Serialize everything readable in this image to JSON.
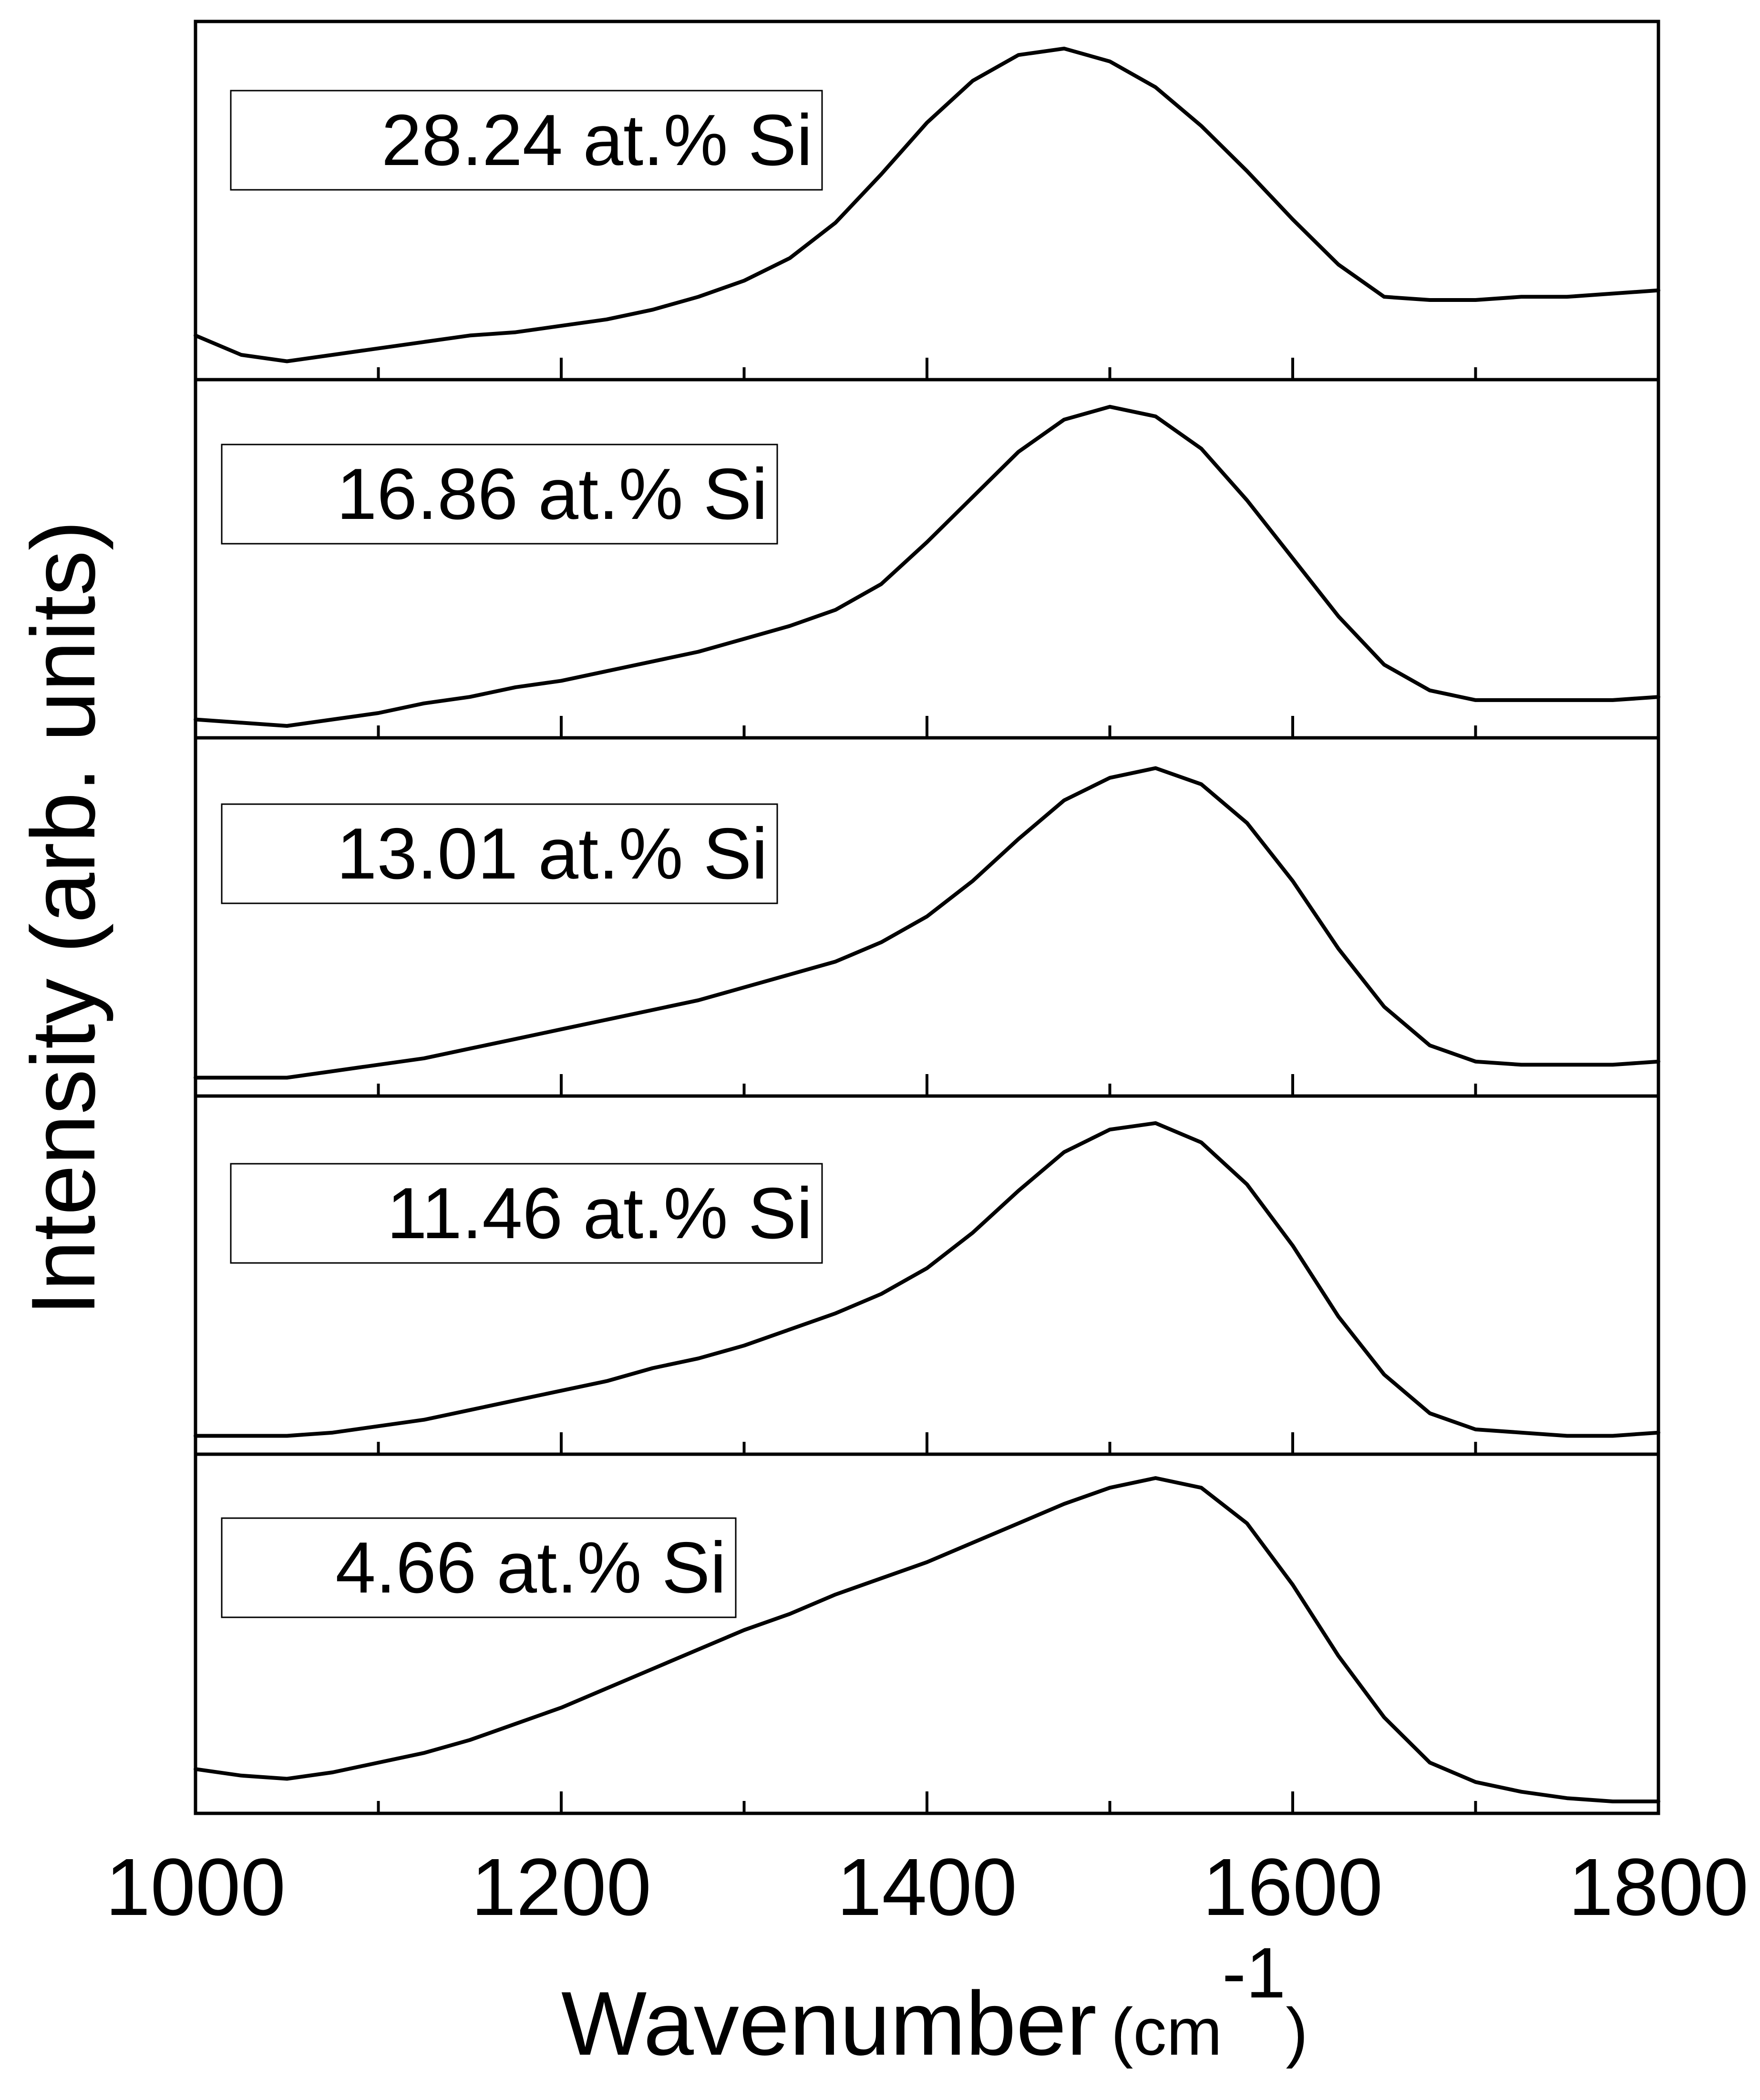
{
  "chart_data": {
    "type": "line",
    "layout": "stacked panels",
    "xlabel": "Wavenumber",
    "xlabel_unit_prefix": "(cm",
    "xlabel_unit_exponent": "-1",
    "xlabel_unit_suffix": ")",
    "ylabel": "Intensity (arb. units)",
    "xlim": [
      1000,
      1800
    ],
    "xticks_major": [
      1000,
      1200,
      1400,
      1600,
      1800
    ],
    "xtick_labels": [
      "1000",
      "1200",
      "1400",
      "1600",
      "1800"
    ],
    "xticks_minor": [
      1100,
      1300,
      1500,
      1700
    ],
    "panel_ylim": [
      0,
      1
    ],
    "series_x": [
      1000,
      1025,
      1050,
      1075,
      1100,
      1125,
      1150,
      1175,
      1200,
      1225,
      1250,
      1275,
      1300,
      1325,
      1350,
      1375,
      1400,
      1425,
      1450,
      1475,
      1500,
      1525,
      1550,
      1575,
      1600,
      1625,
      1650,
      1675,
      1700,
      1725,
      1750,
      1775,
      1800
    ],
    "series": [
      {
        "name": "28.24 at.% Si",
        "values": [
          0.1,
          0.04,
          0.02,
          0.04,
          0.06,
          0.08,
          0.1,
          0.11,
          0.13,
          0.15,
          0.18,
          0.22,
          0.27,
          0.34,
          0.45,
          0.6,
          0.76,
          0.89,
          0.97,
          0.99,
          0.95,
          0.87,
          0.75,
          0.61,
          0.46,
          0.32,
          0.22,
          0.21,
          0.21,
          0.22,
          0.22,
          0.23,
          0.24
        ]
      },
      {
        "name": "16.86 at.% Si",
        "values": [
          0.02,
          0.01,
          0.0,
          0.02,
          0.04,
          0.07,
          0.09,
          0.12,
          0.14,
          0.17,
          0.2,
          0.23,
          0.27,
          0.31,
          0.36,
          0.44,
          0.57,
          0.71,
          0.85,
          0.95,
          0.99,
          0.96,
          0.86,
          0.7,
          0.52,
          0.34,
          0.19,
          0.11,
          0.08,
          0.08,
          0.08,
          0.08,
          0.09
        ]
      },
      {
        "name": "13.01 at.% Si",
        "values": [
          0.02,
          0.02,
          0.02,
          0.04,
          0.06,
          0.08,
          0.11,
          0.14,
          0.17,
          0.2,
          0.23,
          0.26,
          0.3,
          0.34,
          0.38,
          0.44,
          0.52,
          0.63,
          0.76,
          0.88,
          0.95,
          0.98,
          0.93,
          0.81,
          0.63,
          0.42,
          0.24,
          0.12,
          0.07,
          0.06,
          0.06,
          0.06,
          0.07
        ]
      },
      {
        "name": "11.46 at.% Si",
        "values": [
          0.02,
          0.02,
          0.02,
          0.03,
          0.05,
          0.07,
          0.1,
          0.13,
          0.16,
          0.19,
          0.23,
          0.26,
          0.3,
          0.35,
          0.4,
          0.46,
          0.54,
          0.65,
          0.78,
          0.9,
          0.97,
          0.99,
          0.93,
          0.8,
          0.61,
          0.39,
          0.21,
          0.09,
          0.04,
          0.03,
          0.02,
          0.02,
          0.03
        ]
      },
      {
        "name": "4.66 at.% Si",
        "values": [
          0.1,
          0.08,
          0.07,
          0.09,
          0.12,
          0.15,
          0.19,
          0.24,
          0.29,
          0.35,
          0.41,
          0.47,
          0.53,
          0.58,
          0.64,
          0.69,
          0.74,
          0.8,
          0.86,
          0.92,
          0.97,
          1.0,
          0.97,
          0.86,
          0.67,
          0.45,
          0.26,
          0.12,
          0.06,
          0.03,
          0.01,
          0.0,
          0.0
        ]
      }
    ]
  }
}
